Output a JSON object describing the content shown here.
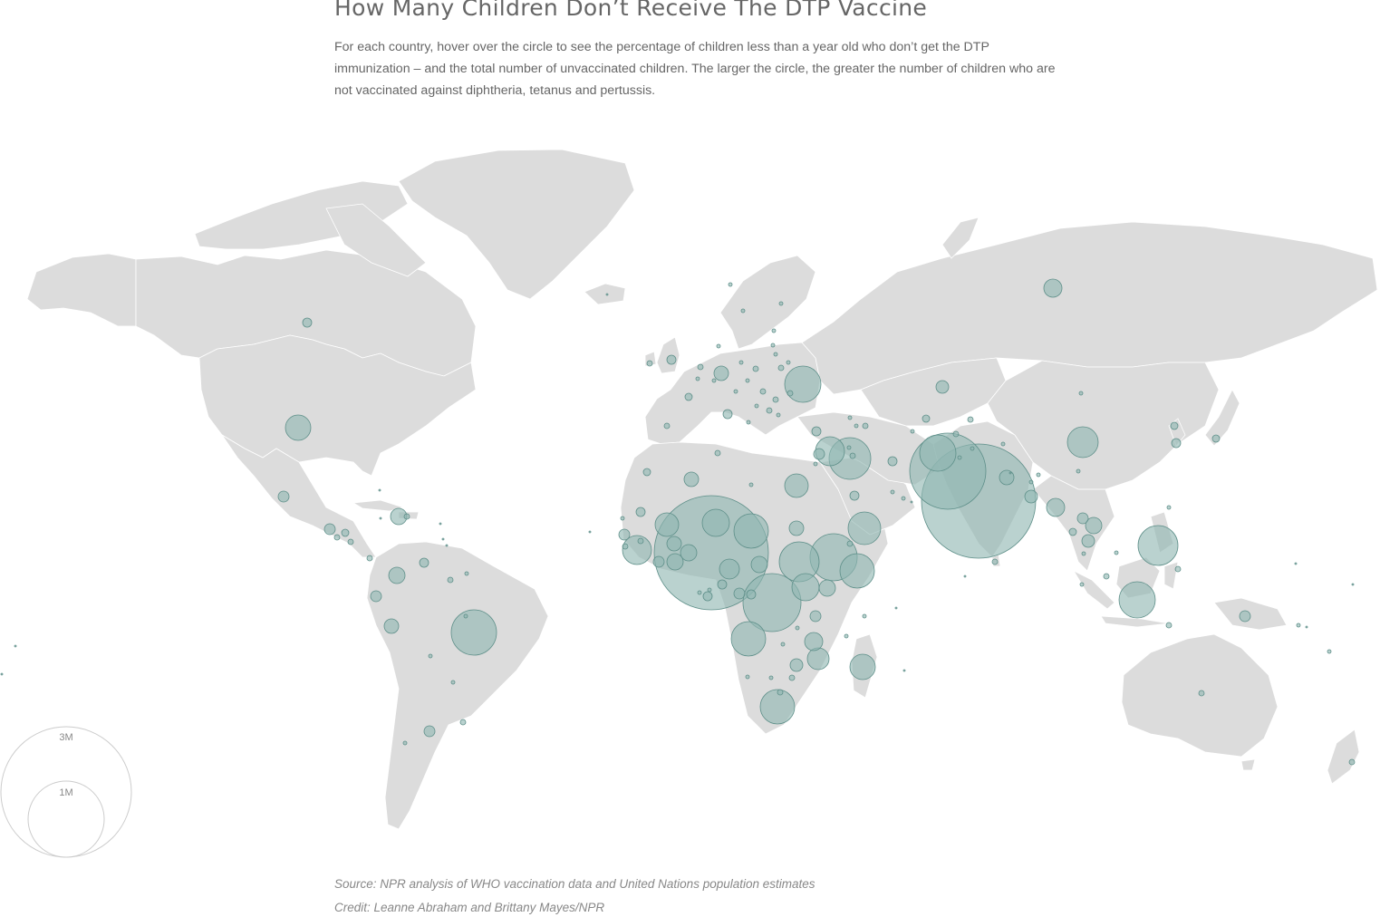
{
  "title": "How Many Children Don’t Receive The DTP Vaccine",
  "description": "For each country, hover over the circle to see the percentage of children less than a year old who don’t get the DTP immunization – and the total number of unvaccinated children. The larger the circle, the greater the number of children who are not vaccinated against diphtheria, tetanus and pertussis.",
  "legend": {
    "large_label": "3M",
    "small_label": "1M"
  },
  "colors": {
    "land": "#dcdcdc",
    "border": "#ffffff",
    "bubble_fill": "#8fb6b1",
    "bubble_stroke": "#5e8f89",
    "legend_stroke": "#cccccc"
  },
  "source": "Source: NPR analysis of WHO vaccination data and United Nations population estimates",
  "credit": "Credit: Leanne Abraham and Brittany Mayes/NPR"
}
